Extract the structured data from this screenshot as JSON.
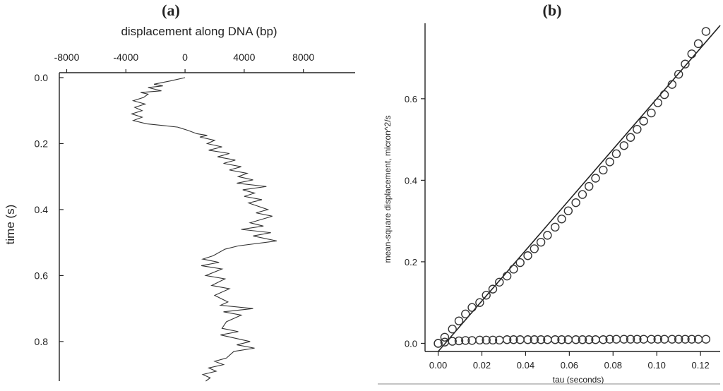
{
  "panels": {
    "a_label": "(a)",
    "b_label": "(b)"
  },
  "chart_data": [
    {
      "type": "line",
      "title": "",
      "xlabel": "displacement along DNA (bp)",
      "ylabel": "time (s)",
      "xlim": [
        -8500,
        11500
      ],
      "ylim": [
        0.0,
        0.92
      ],
      "x_axis_position": "top",
      "y_inverted": true,
      "xticks": [
        -8000,
        -4000,
        0,
        4000,
        8000
      ],
      "xtick_labels": [
        "-8000",
        "-4000",
        "0",
        "4000",
        "8000"
      ],
      "yticks": [
        0.0,
        0.2,
        0.4,
        0.6,
        0.8
      ],
      "ytick_labels": [
        "0.0",
        "0.2",
        "0.4",
        "0.6",
        "0.8"
      ],
      "grid": false,
      "legend": "none",
      "series": [
        {
          "points": [
            [
              0.0,
              0.0
            ],
            [
              -1000,
              0.01
            ],
            [
              -2100,
              0.02
            ],
            [
              -1500,
              0.025
            ],
            [
              -2500,
              0.03
            ],
            [
              -1600,
              0.04
            ],
            [
              -3000,
              0.045
            ],
            [
              -2500,
              0.05
            ],
            [
              -2800,
              0.06
            ],
            [
              -3500,
              0.07
            ],
            [
              -2700,
              0.08
            ],
            [
              -3400,
              0.09
            ],
            [
              -2900,
              0.1
            ],
            [
              -3600,
              0.11
            ],
            [
              -2900,
              0.12
            ],
            [
              -3500,
              0.13
            ],
            [
              -2600,
              0.14
            ],
            [
              -1500,
              0.145
            ],
            [
              -500,
              0.15
            ],
            [
              200,
              0.16
            ],
            [
              800,
              0.17
            ],
            [
              1500,
              0.175
            ],
            [
              1000,
              0.18
            ],
            [
              2000,
              0.19
            ],
            [
              1500,
              0.2
            ],
            [
              2500,
              0.21
            ],
            [
              1600,
              0.22
            ],
            [
              3000,
              0.23
            ],
            [
              2200,
              0.24
            ],
            [
              3400,
              0.25
            ],
            [
              2600,
              0.26
            ],
            [
              3800,
              0.27
            ],
            [
              3000,
              0.28
            ],
            [
              4200,
              0.29
            ],
            [
              3600,
              0.3
            ],
            [
              4600,
              0.31
            ],
            [
              3500,
              0.32
            ],
            [
              5500,
              0.33
            ],
            [
              3900,
              0.34
            ],
            [
              4700,
              0.35
            ],
            [
              4000,
              0.36
            ],
            [
              5200,
              0.37
            ],
            [
              4300,
              0.38
            ],
            [
              5600,
              0.4
            ],
            [
              4800,
              0.41
            ],
            [
              5900,
              0.42
            ],
            [
              4400,
              0.44
            ],
            [
              5300,
              0.45
            ],
            [
              3800,
              0.46
            ],
            [
              5800,
              0.47
            ],
            [
              4600,
              0.48
            ],
            [
              6200,
              0.495
            ],
            [
              3600,
              0.51
            ],
            [
              2700,
              0.52
            ],
            [
              1900,
              0.54
            ],
            [
              1200,
              0.55
            ],
            [
              2300,
              0.56
            ],
            [
              1100,
              0.57
            ],
            [
              2500,
              0.58
            ],
            [
              1400,
              0.6
            ],
            [
              2700,
              0.61
            ],
            [
              1800,
              0.63
            ],
            [
              3000,
              0.64
            ],
            [
              2000,
              0.66
            ],
            [
              2900,
              0.68
            ],
            [
              2400,
              0.69
            ],
            [
              4600,
              0.7
            ],
            [
              2600,
              0.71
            ],
            [
              3800,
              0.72
            ],
            [
              2800,
              0.74
            ],
            [
              2500,
              0.76
            ],
            [
              3600,
              0.77
            ],
            [
              2400,
              0.78
            ],
            [
              4400,
              0.8
            ],
            [
              3500,
              0.81
            ],
            [
              4700,
              0.82
            ],
            [
              3300,
              0.83
            ],
            [
              2800,
              0.85
            ],
            [
              2000,
              0.86
            ],
            [
              2600,
              0.87
            ],
            [
              1600,
              0.88
            ],
            [
              2100,
              0.89
            ],
            [
              1200,
              0.9
            ],
            [
              1700,
              0.91
            ],
            [
              1400,
              0.92
            ]
          ]
        }
      ]
    },
    {
      "type": "scatter",
      "title": "",
      "xlabel": "tau (seconds)",
      "ylabel": "mean-square displacement, micron^2/s",
      "xlim": [
        -0.006,
        0.129
      ],
      "ylim": [
        -0.02,
        0.785
      ],
      "xticks": [
        0.0,
        0.02,
        0.04,
        0.06,
        0.08,
        0.1,
        0.12
      ],
      "xtick_labels": [
        "0.00",
        "0.02",
        "0.04",
        "0.06",
        "0.08",
        "0.10",
        "0.12"
      ],
      "yticks": [
        0.0,
        0.2,
        0.4,
        0.6
      ],
      "ytick_labels": [
        "0.0",
        "0.2",
        "0.4",
        "0.6"
      ],
      "grid": false,
      "legend": "none",
      "fit_line": {
        "slope": 6.2,
        "intercept": -0.02,
        "x_range": [
          0.0,
          0.129
        ]
      },
      "series": [
        {
          "x": [
            0.0,
            0.003,
            0.0065,
            0.0095,
            0.0125,
            0.0155,
            0.019,
            0.022,
            0.025,
            0.028,
            0.0315,
            0.0345,
            0.0375,
            0.041,
            0.044,
            0.047,
            0.05,
            0.0535,
            0.0565,
            0.0595,
            0.063,
            0.066,
            0.069,
            0.072,
            0.0755,
            0.0785,
            0.0815,
            0.085,
            0.088,
            0.091,
            0.094,
            0.0975,
            0.1005,
            0.1035,
            0.107,
            0.11,
            0.113,
            0.116,
            0.119,
            0.1225
          ],
          "y": [
            0.0,
            0.015,
            0.035,
            0.055,
            0.072,
            0.088,
            0.1,
            0.118,
            0.133,
            0.15,
            0.165,
            0.182,
            0.198,
            0.215,
            0.232,
            0.248,
            0.265,
            0.285,
            0.305,
            0.325,
            0.345,
            0.365,
            0.385,
            0.405,
            0.425,
            0.445,
            0.465,
            0.485,
            0.505,
            0.525,
            0.545,
            0.565,
            0.59,
            0.61,
            0.635,
            0.66,
            0.685,
            0.71,
            0.735,
            0.765
          ]
        },
        {
          "x": [
            0.0,
            0.003,
            0.0065,
            0.0095,
            0.0125,
            0.0155,
            0.019,
            0.022,
            0.025,
            0.028,
            0.0315,
            0.0345,
            0.0375,
            0.041,
            0.044,
            0.047,
            0.05,
            0.0535,
            0.0565,
            0.0595,
            0.063,
            0.066,
            0.069,
            0.072,
            0.0755,
            0.0785,
            0.0815,
            0.085,
            0.088,
            0.091,
            0.094,
            0.0975,
            0.1005,
            0.1035,
            0.107,
            0.11,
            0.113,
            0.116,
            0.119,
            0.1225
          ],
          "y": [
            0.0,
            0.003,
            0.005,
            0.006,
            0.007,
            0.007,
            0.008,
            0.008,
            0.008,
            0.008,
            0.009,
            0.009,
            0.009,
            0.009,
            0.009,
            0.009,
            0.009,
            0.009,
            0.009,
            0.009,
            0.009,
            0.009,
            0.009,
            0.009,
            0.009,
            0.01,
            0.01,
            0.01,
            0.01,
            0.01,
            0.01,
            0.01,
            0.01,
            0.01,
            0.01,
            0.01,
            0.01,
            0.01,
            0.01,
            0.01
          ]
        }
      ]
    }
  ]
}
